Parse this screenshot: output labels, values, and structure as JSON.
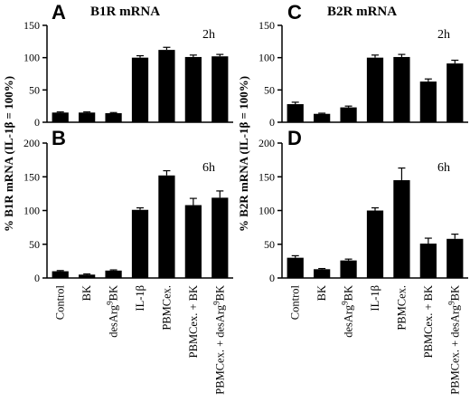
{
  "column_titles": [
    "B1R mRNA",
    "B2R mRNA"
  ],
  "y_axis_labels": [
    "% B1R mRNA (IL-1β = 100%)",
    "% B2R mRNA (IL-1β = 100%)"
  ],
  "categories": [
    {
      "main": "Control",
      "sup": "",
      "tail": ""
    },
    {
      "main": "BK",
      "sup": "",
      "tail": ""
    },
    {
      "main": "desArg",
      "sup": "9",
      "tail": "BK"
    },
    {
      "main": "IL-1β",
      "sup": "",
      "tail": ""
    },
    {
      "main": "PBMCex.",
      "sup": "",
      "tail": ""
    },
    {
      "main": "PBMCex. + BK",
      "sup": "",
      "tail": ""
    },
    {
      "main": "PBMCex. + desArg",
      "sup": "9",
      "tail": "BK"
    }
  ],
  "chart_data": [
    {
      "panel": "A",
      "type": "bar",
      "title": "B1R mRNA",
      "time": "2h",
      "yticks": [
        0,
        50,
        100,
        150
      ],
      "ylim": [
        0,
        150
      ],
      "values": [
        15,
        15,
        14,
        100,
        112,
        101,
        102
      ],
      "errors": [
        1,
        1,
        1,
        3,
        4,
        3,
        3
      ],
      "color": "#000000"
    },
    {
      "panel": "B",
      "type": "bar",
      "title": "",
      "time": "6h",
      "yticks": [
        0,
        50,
        100,
        150,
        200
      ],
      "ylim": [
        0,
        200
      ],
      "values": [
        10,
        5,
        11,
        101,
        152,
        108,
        119
      ],
      "errors": [
        1,
        1,
        1,
        3,
        7,
        10,
        10
      ],
      "color": "#000000"
    },
    {
      "panel": "C",
      "type": "bar",
      "title": "B2R mRNA",
      "time": "2h",
      "yticks": [
        0,
        50,
        100,
        150
      ],
      "ylim": [
        0,
        150
      ],
      "values": [
        28,
        13,
        23,
        100,
        101,
        63,
        91
      ],
      "errors": [
        3,
        1,
        2,
        4,
        4,
        4,
        5
      ],
      "color": "#000000"
    },
    {
      "panel": "D",
      "type": "bar",
      "title": "",
      "time": "6h",
      "yticks": [
        0,
        50,
        100,
        150,
        200
      ],
      "ylim": [
        0,
        200
      ],
      "values": [
        30,
        13,
        26,
        100,
        145,
        51,
        58
      ],
      "errors": [
        3,
        1,
        2,
        4,
        18,
        8,
        7
      ],
      "color": "#000000"
    }
  ]
}
